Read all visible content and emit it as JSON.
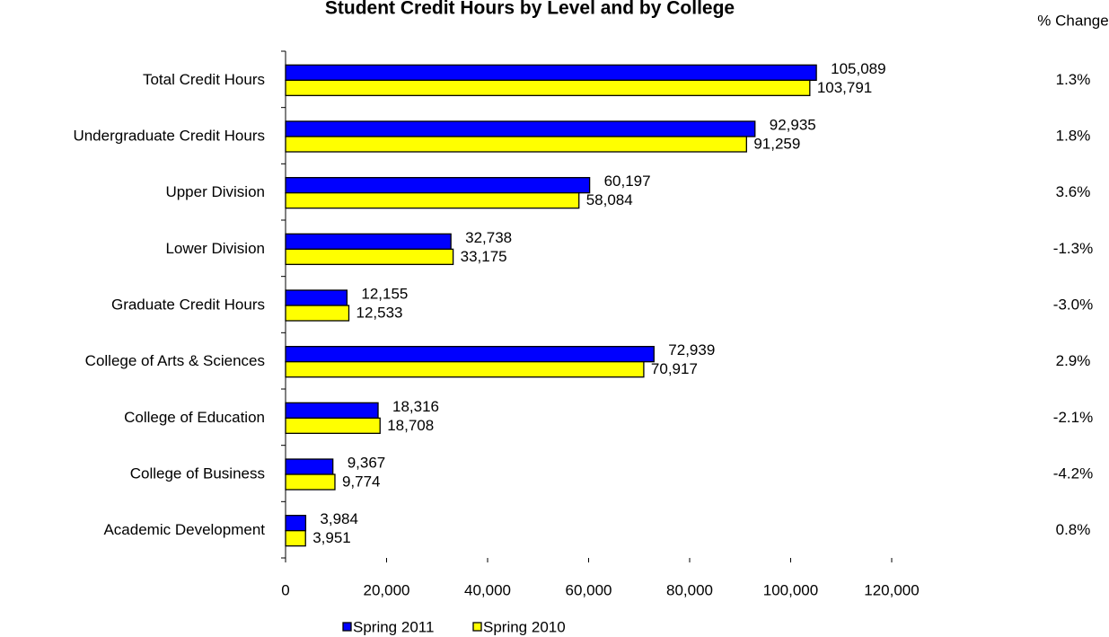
{
  "chart_data": {
    "type": "hbar",
    "title": "Student Credit Hours by Level and by College",
    "categories": [
      "Total Credit Hours",
      "Undergraduate Credit Hours",
      "Upper Division",
      "Lower Division",
      "Graduate Credit Hours",
      "College of Arts & Sciences",
      "College of Education",
      "College of Business",
      "Academic Development"
    ],
    "series": [
      {
        "name": "Spring 2011",
        "color": "#0000ff",
        "values": [
          105089,
          92935,
          60197,
          32738,
          12155,
          72939,
          18316,
          9367,
          3984
        ],
        "value_labels": [
          "105,089",
          "92,935",
          "60,197",
          "32,738",
          "12,155",
          "72,939",
          "18,316",
          "9,367",
          "3,984"
        ]
      },
      {
        "name": "Spring 2010",
        "color": "#ffff00",
        "values": [
          103791,
          91259,
          58084,
          33175,
          12533,
          70917,
          18708,
          9774,
          3951
        ],
        "value_labels": [
          "103,791",
          "91,259",
          "58,084",
          "33,175",
          "12,533",
          "70,917",
          "18,708",
          "9,774",
          "3,951"
        ]
      }
    ],
    "xlim": [
      0,
      120000
    ],
    "xticks": [
      0,
      {
        "value": 20000,
        "label": "20,000"
      },
      {
        "value": 40000,
        "label": "40,000"
      },
      {
        "value": 60000,
        "label": "60,000"
      },
      {
        "value": 80000,
        "label": "80,000"
      },
      {
        "value": 100000,
        "label": "100,000"
      },
      {
        "value": 120000,
        "label": "120,000"
      }
    ],
    "change_header": "% Change",
    "changes": [
      "1.3%",
      "1.8%",
      "3.6%",
      "-1.3%",
      "-3.0%",
      "2.9%",
      "-2.1%",
      "-4.2%",
      "0.8%"
    ],
    "legend": "bottom"
  }
}
